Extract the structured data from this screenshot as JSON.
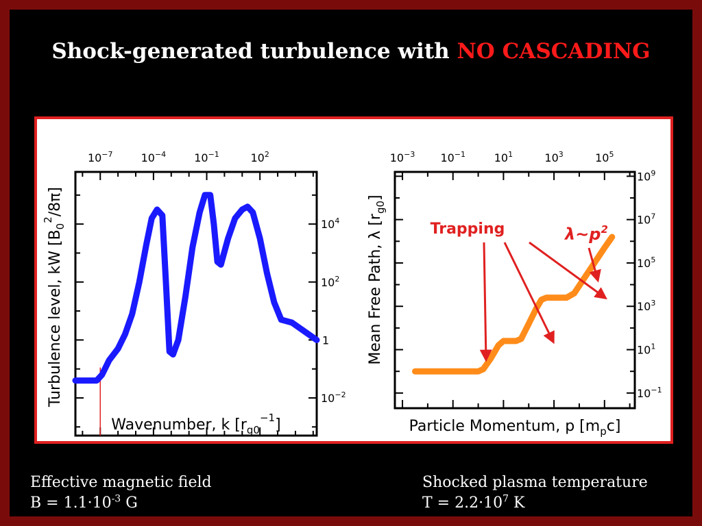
{
  "slide": {
    "title_main": "Shock-generated turbulence with",
    "title_highlight": "NO CASCADING",
    "colors": {
      "frame": "#7a0b0b",
      "highlight": "#ff1a1a",
      "panel_border": "#e02020"
    }
  },
  "captions": {
    "left_line1": "Effective magnetic field",
    "left_line2_pre": "B = 1.1·10",
    "left_line2_exp": "-3",
    "left_line2_post": " G",
    "right_line1": "Shocked plasma temperature",
    "right_line2_pre": "T = 2.2·10",
    "right_line2_exp": "7",
    "right_line2_post": " K"
  },
  "chart_data": [
    {
      "type": "line",
      "xlabel": "Wavenumber, k [r",
      "xlabel_sub": "g0",
      "xlabel_sup": "−1",
      "xlabel_end": "]",
      "ylabel": "Turbulence level, kW [B",
      "ylabel_sub": "0",
      "ylabel_sup": "2",
      "ylabel_end": "/8π]",
      "x_scale": "log",
      "y_scale": "log",
      "xlim_log10": [
        -8.4,
        5.2
      ],
      "ylim_log10": [
        -3.3,
        5.8
      ],
      "x_tick_exponents": [
        -7,
        -4,
        -1,
        2
      ],
      "y_tick_exponents": [
        -2,
        2,
        4
      ],
      "y_tick_one": "1",
      "line_color": "#1a1aff",
      "marker_line_color": "#e02020",
      "marker_line_x_log10": -7,
      "series": [
        {
          "points_log10": [
            [
              -8.4,
              -1.4
            ],
            [
              -7.8,
              -1.4
            ],
            [
              -7.2,
              -1.4
            ],
            [
              -6.9,
              -1.2
            ],
            [
              -6.5,
              -0.7
            ],
            [
              -6.0,
              -0.3
            ],
            [
              -5.6,
              0.2
            ],
            [
              -5.2,
              0.9
            ],
            [
              -4.8,
              2.0
            ],
            [
              -4.4,
              3.3
            ],
            [
              -4.1,
              4.2
            ],
            [
              -3.8,
              4.5
            ],
            [
              -3.5,
              4.3
            ],
            [
              -3.3,
              2.0
            ],
            [
              -3.1,
              -0.4
            ],
            [
              -2.9,
              -0.5
            ],
            [
              -2.6,
              0.0
            ],
            [
              -2.2,
              1.5
            ],
            [
              -1.8,
              3.2
            ],
            [
              -1.4,
              4.4
            ],
            [
              -1.1,
              5.0
            ],
            [
              -0.8,
              5.0
            ],
            [
              -0.6,
              4.0
            ],
            [
              -0.4,
              2.7
            ],
            [
              -0.2,
              2.6
            ],
            [
              0.2,
              3.5
            ],
            [
              0.6,
              4.2
            ],
            [
              1.0,
              4.5
            ],
            [
              1.3,
              4.6
            ],
            [
              1.6,
              4.4
            ],
            [
              2.0,
              3.5
            ],
            [
              2.4,
              2.3
            ],
            [
              2.8,
              1.3
            ],
            [
              3.2,
              0.7
            ],
            [
              3.8,
              0.6
            ],
            [
              4.5,
              0.3
            ],
            [
              5.2,
              0.0
            ]
          ]
        }
      ]
    },
    {
      "type": "line",
      "xlabel": "Particle Momentum, p [m",
      "xlabel_sub": "p",
      "xlabel_end": "c]",
      "ylabel": "Mean Free Path, λ [r",
      "ylabel_sub": "g0",
      "ylabel_end": "]",
      "x_scale": "log",
      "y_scale": "log",
      "xlim_log10": [
        -3.3,
        6.2
      ],
      "ylim_log10": [
        -1.7,
        9.2
      ],
      "x_tick_exponents": [
        -3,
        -1,
        1,
        3,
        5
      ],
      "y_tick_exponents": [
        -1,
        1,
        3,
        5,
        7,
        9
      ],
      "line_color": "#ff8c1a",
      "annotation_color": "#e02020",
      "annotations": {
        "trapping": "Trapping",
        "scaling_lhs": "λ~",
        "scaling_var": "p",
        "scaling_exp": "2"
      },
      "series": [
        {
          "points_log10": [
            [
              -2.5,
              0.0
            ],
            [
              -1.0,
              0.0
            ],
            [
              0.0,
              0.0
            ],
            [
              0.2,
              0.1
            ],
            [
              0.5,
              0.6
            ],
            [
              0.8,
              1.2
            ],
            [
              1.0,
              1.4
            ],
            [
              1.5,
              1.4
            ],
            [
              1.7,
              1.5
            ],
            [
              2.0,
              2.2
            ],
            [
              2.3,
              2.9
            ],
            [
              2.5,
              3.3
            ],
            [
              2.7,
              3.4
            ],
            [
              3.5,
              3.4
            ],
            [
              3.8,
              3.6
            ],
            [
              4.2,
              4.3
            ],
            [
              4.6,
              5.0
            ],
            [
              5.0,
              5.7
            ],
            [
              5.3,
              6.2
            ]
          ]
        }
      ]
    }
  ]
}
